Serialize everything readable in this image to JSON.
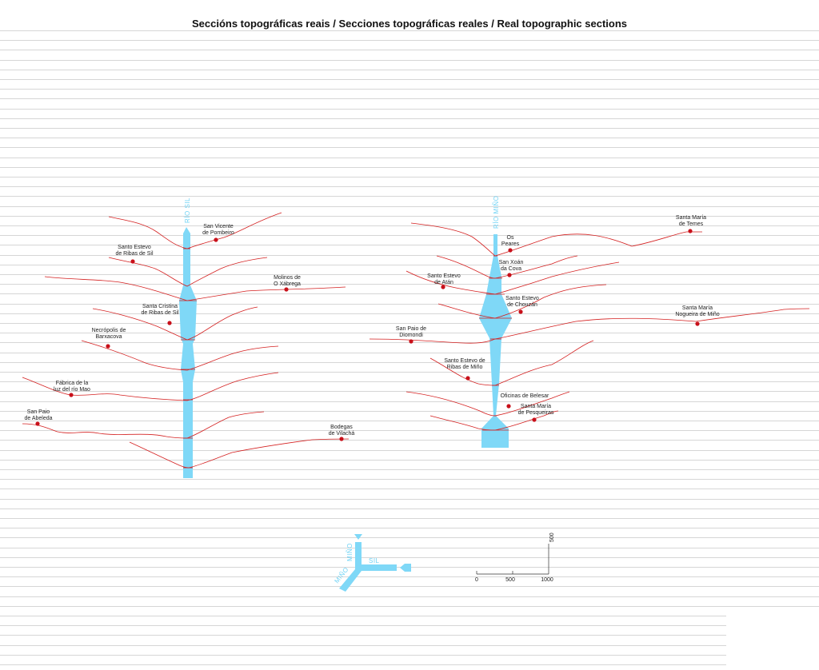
{
  "title": "Seccións topográficas reais / Secciones topográficas reales / Real topographic sections",
  "colors": {
    "river": "#7fd8f7",
    "profile": "#d42020",
    "point": "#c8101a",
    "rule": "#c9c9c9"
  },
  "rivers": {
    "sil": {
      "label": "RÍO SIL"
    },
    "mino": {
      "label": "RÍO MIÑO"
    }
  },
  "sil_places": [
    {
      "line1": "San Vicente",
      "line2": "de Pombeiro"
    },
    {
      "line1": "Santo Estevo",
      "line2": "de Ribas de Sil"
    },
    {
      "line1": "Molinos de",
      "line2": "O Xábrega"
    },
    {
      "line1": "Santa Cristina",
      "line2": "de Ribas de Sil"
    },
    {
      "line1": "Necrópolis de",
      "line2": "Barxacova"
    },
    {
      "line1": "Fábrica de la",
      "line2": "luz del río Mao"
    },
    {
      "line1": "San Paio",
      "line2": "de Abeleda"
    },
    {
      "line1": "Bodegas",
      "line2": "de Vilachá"
    }
  ],
  "mino_places": [
    {
      "line1": "Santa María",
      "line2": "de Temes"
    },
    {
      "line1": "Os",
      "line2": "Peares"
    },
    {
      "line1": "San Xoán",
      "line2": "da Cova"
    },
    {
      "line1": "Santo Estevo",
      "line2": "de Atán"
    },
    {
      "line1": "Santo Estevo",
      "line2": "de Chouzán"
    },
    {
      "line1": "Santa María",
      "line2": "Nogueira de Miño"
    },
    {
      "line1": "San Paio de",
      "line2": "Diomondi"
    },
    {
      "line1": "Santo Estevo de",
      "line2": "Ribas de Miño"
    },
    {
      "line1": "Oficinas de Belesar",
      "line2": ""
    },
    {
      "line1": "Santa María",
      "line2": "de Pesqueiras"
    }
  ],
  "confluence": {
    "mino_up": "MIÑO",
    "mino_down": "MIÑO",
    "sil": "SIL"
  },
  "scale": {
    "x_ticks": [
      "0",
      "500",
      "1000"
    ],
    "y_tick": "500"
  }
}
